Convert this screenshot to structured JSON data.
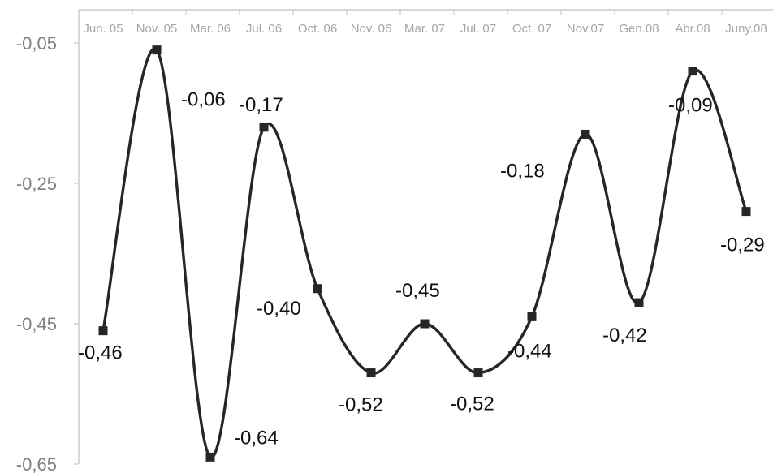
{
  "chart_data": {
    "type": "line",
    "title": "",
    "xlabel": "",
    "ylabel": "",
    "categories": [
      "Jun. 05",
      "Nov. 05",
      "Mar. 06",
      "Jul. 06",
      "Oct. 06",
      "Nov. 06",
      "Mar. 07",
      "Jul. 07",
      "Oct. 07",
      "Nov.07",
      "Gen.08",
      "Abr.08",
      "Juny.08"
    ],
    "series": [
      {
        "values": [
          -0.46,
          -0.06,
          -0.64,
          -0.17,
          -0.4,
          -0.52,
          -0.45,
          -0.52,
          -0.44,
          -0.18,
          -0.42,
          -0.09,
          -0.29
        ],
        "labels": [
          "-0,46",
          "-0,06",
          "-0,64",
          "-0,17",
          "-0,40",
          "-0,52",
          "-0,45",
          "-0,52",
          "-0,44",
          "-0,18",
          "-0,42",
          "-0,09",
          "-0,29"
        ]
      }
    ],
    "ylim": [
      -0.65,
      -0.05
    ],
    "yticks": [
      -0.05,
      -0.25,
      -0.45,
      -0.65
    ],
    "ytick_labels": [
      "-0,05",
      "-0,25",
      "-0,45",
      "-0,65"
    ],
    "x_axis_position": "top",
    "grid": false,
    "legend": "none",
    "line_style": "smooth",
    "marker": "square",
    "line_color": "#262626",
    "axis_color": "#bfbfbf"
  }
}
